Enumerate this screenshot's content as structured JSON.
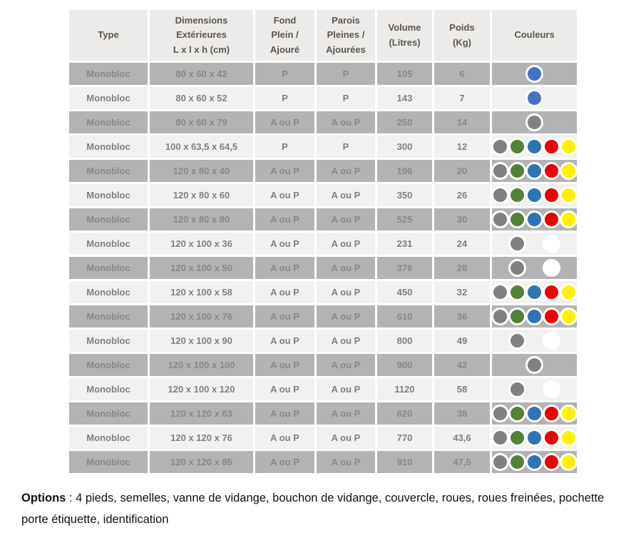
{
  "table": {
    "headers": [
      "Type",
      "Dimensions\nExtérieures\nL x l x h (cm)",
      "Fond\nPlein /\nAjouré",
      "Parois\nPleines /\nAjourées",
      "Volume\n(Litres)",
      "Poids\n(Kg)",
      "Couleurs"
    ],
    "palette": {
      "gray": "#808080",
      "green": "#538135",
      "blue": "#2e75b6",
      "royal_blue": "#4472c4",
      "red": "#ec0000",
      "yellow": "#fff101",
      "white": "#ffffff"
    },
    "rows": [
      {
        "type": "Monobloc",
        "dimensions": "80 x 60 x 42",
        "fond": "P",
        "parois": "P",
        "volume": "105",
        "poids": "6",
        "couleurs": [
          {
            "slot": 3,
            "color": "royal_blue"
          }
        ]
      },
      {
        "type": "Monobloc",
        "dimensions": "80 x 60 x 52",
        "fond": "P",
        "parois": "P",
        "volume": "143",
        "poids": "7",
        "couleurs": [
          {
            "slot": 3,
            "color": "royal_blue"
          }
        ]
      },
      {
        "type": "Monobloc",
        "dimensions": "80 x 60 x 79",
        "fond": "A ou P",
        "parois": "A ou P",
        "volume": "250",
        "poids": "14",
        "couleurs": [
          {
            "slot": 3,
            "color": "gray"
          }
        ]
      },
      {
        "type": "Monobloc",
        "dimensions": "100 x 63,5 x 64,5",
        "fond": "P",
        "parois": "P",
        "volume": "300",
        "poids": "12",
        "couleurs": [
          {
            "slot": 1,
            "color": "gray"
          },
          {
            "slot": 2,
            "color": "green"
          },
          {
            "slot": 3,
            "color": "blue"
          },
          {
            "slot": 4,
            "color": "red"
          },
          {
            "slot": 5,
            "color": "yellow"
          }
        ]
      },
      {
        "type": "Monobloc",
        "dimensions": "120 x 80 x 40",
        "fond": "A ou P",
        "parois": "A ou P",
        "volume": "196",
        "poids": "20",
        "couleurs": [
          {
            "slot": 1,
            "color": "gray"
          },
          {
            "slot": 2,
            "color": "green"
          },
          {
            "slot": 3,
            "color": "blue"
          },
          {
            "slot": 4,
            "color": "red"
          },
          {
            "slot": 5,
            "color": "yellow"
          }
        ]
      },
      {
        "type": "Monobloc",
        "dimensions": "120 x 80 x 60",
        "fond": "A ou P",
        "parois": "A ou P",
        "volume": "350",
        "poids": "26",
        "couleurs": [
          {
            "slot": 1,
            "color": "gray"
          },
          {
            "slot": 2,
            "color": "green"
          },
          {
            "slot": 3,
            "color": "blue"
          },
          {
            "slot": 4,
            "color": "red"
          },
          {
            "slot": 5,
            "color": "yellow"
          }
        ]
      },
      {
        "type": "Monobloc",
        "dimensions": "120 x 80 x 80",
        "fond": "A ou P",
        "parois": "A ou P",
        "volume": "525",
        "poids": "30",
        "couleurs": [
          {
            "slot": 1,
            "color": "gray"
          },
          {
            "slot": 2,
            "color": "green"
          },
          {
            "slot": 3,
            "color": "blue"
          },
          {
            "slot": 4,
            "color": "red"
          },
          {
            "slot": 5,
            "color": "yellow"
          }
        ]
      },
      {
        "type": "Monobloc",
        "dimensions": "120 x 100 x 36",
        "fond": "A ou P",
        "parois": "A ou P",
        "volume": "231",
        "poids": "24",
        "couleurs": [
          {
            "slot": 2,
            "color": "gray"
          },
          {
            "slot": 4,
            "color": "white"
          }
        ]
      },
      {
        "type": "Monobloc",
        "dimensions": "120 x 100 x 50",
        "fond": "A ou P",
        "parois": "A ou P",
        "volume": "376",
        "poids": "28",
        "couleurs": [
          {
            "slot": 2,
            "color": "gray"
          },
          {
            "slot": 4,
            "color": "white"
          }
        ]
      },
      {
        "type": "Monobloc",
        "dimensions": "120 x 100 x 58",
        "fond": "A ou P",
        "parois": "A ou P",
        "volume": "450",
        "poids": "32",
        "couleurs": [
          {
            "slot": 1,
            "color": "gray"
          },
          {
            "slot": 2,
            "color": "green"
          },
          {
            "slot": 3,
            "color": "blue"
          },
          {
            "slot": 4,
            "color": "red"
          },
          {
            "slot": 5,
            "color": "yellow"
          }
        ]
      },
      {
        "type": "Monobloc",
        "dimensions": "120 x 100 x 76",
        "fond": "A ou P",
        "parois": "A ou P",
        "volume": "610",
        "poids": "36",
        "couleurs": [
          {
            "slot": 1,
            "color": "gray"
          },
          {
            "slot": 2,
            "color": "green"
          },
          {
            "slot": 3,
            "color": "blue"
          },
          {
            "slot": 4,
            "color": "red"
          },
          {
            "slot": 5,
            "color": "yellow"
          }
        ]
      },
      {
        "type": "Monobloc",
        "dimensions": "120 x 100 x 90",
        "fond": "A ou P",
        "parois": "A ou P",
        "volume": "800",
        "poids": "49",
        "couleurs": [
          {
            "slot": 2,
            "color": "gray"
          },
          {
            "slot": 4,
            "color": "white"
          }
        ]
      },
      {
        "type": "Monobloc",
        "dimensions": "120 x 100 x 100",
        "fond": "A ou P",
        "parois": "A ou P",
        "volume": "900",
        "poids": "42",
        "couleurs": [
          {
            "slot": 3,
            "color": "gray"
          }
        ]
      },
      {
        "type": "Monobloc",
        "dimensions": "120 x 100 x 120",
        "fond": "A ou P",
        "parois": "A ou P",
        "volume": "1120",
        "poids": "58",
        "couleurs": [
          {
            "slot": 2,
            "color": "gray"
          },
          {
            "slot": 4,
            "color": "white"
          }
        ]
      },
      {
        "type": "Monobloc",
        "dimensions": "120 x 120 x 63",
        "fond": "A ou P",
        "parois": "A ou P",
        "volume": "620",
        "poids": "38",
        "couleurs": [
          {
            "slot": 1,
            "color": "gray"
          },
          {
            "slot": 2,
            "color": "green"
          },
          {
            "slot": 3,
            "color": "blue"
          },
          {
            "slot": 4,
            "color": "red"
          },
          {
            "slot": 5,
            "color": "yellow"
          }
        ]
      },
      {
        "type": "Monobloc",
        "dimensions": "120 x 120 x 76",
        "fond": "A ou P",
        "parois": "A ou P",
        "volume": "770",
        "poids": "43,6",
        "couleurs": [
          {
            "slot": 1,
            "color": "gray"
          },
          {
            "slot": 2,
            "color": "green"
          },
          {
            "slot": 3,
            "color": "blue"
          },
          {
            "slot": 4,
            "color": "red"
          },
          {
            "slot": 5,
            "color": "yellow"
          }
        ]
      },
      {
        "type": "Monobloc",
        "dimensions": "120 x 120 x 85",
        "fond": "A ou P",
        "parois": "A ou P",
        "volume": "910",
        "poids": "47,5",
        "couleurs": [
          {
            "slot": 1,
            "color": "gray"
          },
          {
            "slot": 2,
            "color": "green"
          },
          {
            "slot": 3,
            "color": "blue"
          },
          {
            "slot": 4,
            "color": "red"
          },
          {
            "slot": 5,
            "color": "yellow"
          }
        ]
      }
    ]
  },
  "options": {
    "label": "Options",
    "text": " : 4 pieds, semelles, vanne de vidange, bouchon de vidange, couvercle, roues, roues freinées, pochette porte étiquette, identification"
  }
}
